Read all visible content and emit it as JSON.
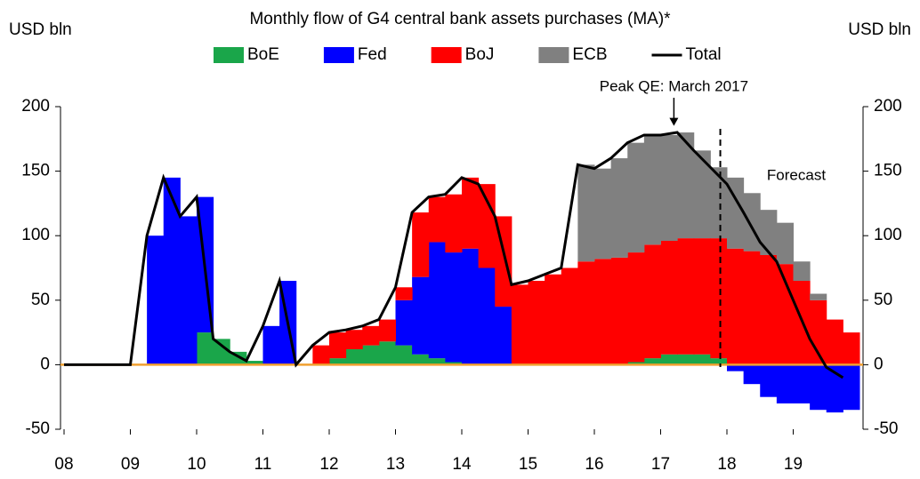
{
  "chart_data": {
    "type": "stacked_area",
    "title": "Monthly flow of G4 central bank assets purchases (MA)*",
    "y_label": "USD bln",
    "y2_label": "USD bln",
    "x": [
      2008,
      2008.25,
      2008.5,
      2008.75,
      2009,
      2009.25,
      2009.5,
      2009.75,
      2010,
      2010.25,
      2010.5,
      2010.75,
      2011,
      2011.25,
      2011.5,
      2011.75,
      2012,
      2012.25,
      2012.5,
      2012.75,
      2013,
      2013.25,
      2013.5,
      2013.75,
      2014,
      2014.25,
      2014.5,
      2014.75,
      2015,
      2015.25,
      2015.5,
      2015.75,
      2016,
      2016.25,
      2016.5,
      2016.75,
      2017,
      2017.25,
      2017.5,
      2017.75,
      2018,
      2018.25,
      2018.5,
      2018.75,
      2019,
      2019.25,
      2019.5,
      2019.75
    ],
    "series": [
      {
        "name": "BoE",
        "color": "#1aa64a",
        "values": [
          0,
          0,
          0,
          0,
          0,
          0,
          0,
          0,
          25,
          20,
          10,
          3,
          0,
          0,
          0,
          0,
          5,
          12,
          15,
          18,
          15,
          8,
          5,
          2,
          0,
          0,
          0,
          0,
          0,
          0,
          0,
          0,
          0,
          0,
          2,
          5,
          8,
          8,
          8,
          5,
          0,
          0,
          0,
          0,
          0,
          0,
          0,
          0
        ]
      },
      {
        "name": "Fed",
        "color": "#0000ff",
        "values": [
          0,
          0,
          0,
          0,
          0,
          100,
          145,
          115,
          105,
          0,
          0,
          0,
          30,
          65,
          0,
          0,
          0,
          0,
          0,
          0,
          35,
          60,
          90,
          85,
          90,
          75,
          45,
          0,
          0,
          0,
          0,
          0,
          0,
          0,
          0,
          0,
          0,
          0,
          0,
          0,
          -5,
          -15,
          -25,
          -30,
          -30,
          -35,
          -37,
          -35
        ]
      },
      {
        "name": "BoJ",
        "color": "#ff0000",
        "values": [
          0,
          0,
          0,
          0,
          0,
          0,
          0,
          0,
          0,
          0,
          0,
          0,
          0,
          0,
          0,
          15,
          20,
          15,
          15,
          17,
          10,
          50,
          35,
          45,
          55,
          65,
          70,
          62,
          65,
          70,
          75,
          80,
          82,
          83,
          85,
          88,
          88,
          90,
          90,
          93,
          90,
          88,
          85,
          78,
          65,
          50,
          35,
          25
        ]
      },
      {
        "name": "ECB",
        "color": "#808080",
        "values": [
          0,
          0,
          0,
          0,
          0,
          0,
          0,
          0,
          0,
          0,
          0,
          0,
          0,
          0,
          0,
          0,
          0,
          0,
          0,
          0,
          0,
          0,
          0,
          0,
          0,
          0,
          0,
          0,
          0,
          0,
          0,
          75,
          70,
          77,
          85,
          85,
          82,
          82,
          68,
          55,
          55,
          45,
          35,
          32,
          15,
          5,
          0,
          0
        ]
      },
      {
        "name": "Total",
        "color": "#000000",
        "type": "line",
        "values": [
          0,
          0,
          0,
          0,
          0,
          100,
          145,
          115,
          130,
          20,
          10,
          3,
          30,
          65,
          0,
          15,
          25,
          27,
          30,
          35,
          60,
          118,
          130,
          132,
          145,
          140,
          115,
          62,
          65,
          70,
          75,
          155,
          152,
          160,
          172,
          178,
          178,
          180,
          166,
          153,
          140,
          118,
          95,
          80,
          50,
          20,
          -2,
          -10
        ]
      }
    ],
    "xlim": [
      2008,
      2020
    ],
    "xticks": [
      {
        "value": 2008,
        "label": "08"
      },
      {
        "value": 2009,
        "label": "09"
      },
      {
        "value": 2010,
        "label": "10"
      },
      {
        "value": 2011,
        "label": "11"
      },
      {
        "value": 2012,
        "label": "12"
      },
      {
        "value": 2013,
        "label": "13"
      },
      {
        "value": 2014,
        "label": "14"
      },
      {
        "value": 2015,
        "label": "15"
      },
      {
        "value": 2016,
        "label": "16"
      },
      {
        "value": 2017,
        "label": "17"
      },
      {
        "value": 2018,
        "label": "18"
      },
      {
        "value": 2019,
        "label": "19"
      }
    ],
    "ylim": [
      -50,
      200
    ],
    "yticks": [
      -50,
      0,
      50,
      100,
      150,
      200
    ],
    "y2lim": [
      -50,
      200
    ],
    "y2ticks": [
      -50,
      0,
      50,
      100,
      150,
      200
    ],
    "zero_line_color": "#f0a030",
    "forecast_start": 2017.9,
    "annotations": [
      {
        "text": "Peak QE: March 2017",
        "x": 2017.2,
        "y": 183
      },
      {
        "text": "Forecast"
      }
    ],
    "legend": "top"
  }
}
